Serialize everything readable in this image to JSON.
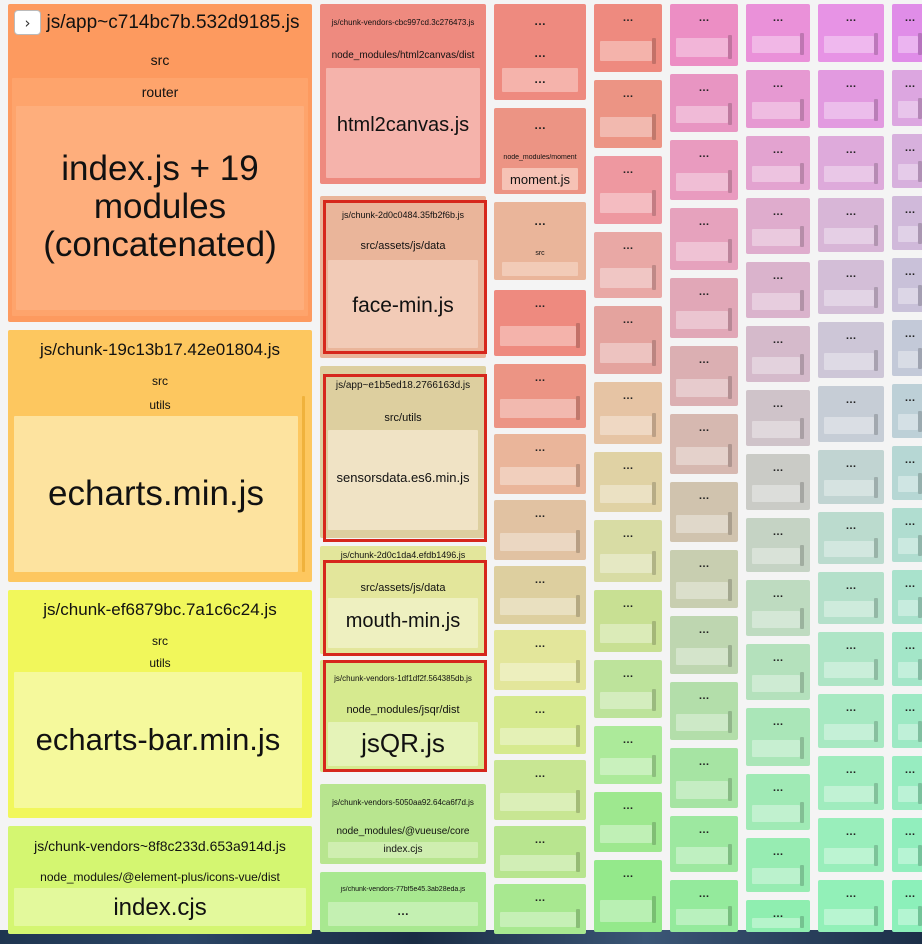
{
  "toggle": {
    "icon": "chevron-right-icon",
    "glyph": "›"
  },
  "placeholder": "…",
  "colors": {
    "col1": [
      "#fd9a5f",
      "#fdc75f",
      "#f1f75b",
      "#d4f671"
    ],
    "col2": [
      "#ee8a7f",
      "#ec9484",
      "#eab59a",
      "#ddcf9f",
      "#e3e69b",
      "#d6ea8f",
      "#b8e58f",
      "#a8e890",
      "#98e887"
    ],
    "highlight": "#d6271c"
  },
  "bundles": [
    {
      "name": "js/app~c714bc7b.532d9185.js",
      "path1": "src",
      "path2": "router",
      "module": "index.js + 19 modules (concatenated)"
    },
    {
      "name": "js/chunk-19c13b17.42e01804.js",
      "path1": "src",
      "path2": "utils",
      "module": "echarts.min.js"
    },
    {
      "name": "js/chunk-ef6879bc.7a1c6c24.js",
      "path1": "src",
      "path2": "utils",
      "module": "echarts-bar.min.js"
    },
    {
      "name": "js/chunk-vendors~8f8c233d.653a914d.js",
      "path1": "node_modules/@element-plus/icons-vue/dist",
      "module": "index.cjs"
    },
    {
      "name": "js/chunk-vendors-cbc997cd.3c276473.js",
      "path1": "node_modules/html2canvas/dist",
      "module": "html2canvas.js"
    },
    {
      "name": "node_modules/moment",
      "module": "moment.js"
    },
    {
      "name": "js/chunk-2d0c0484.35fb2f6b.js",
      "path1": "src/assets/js/data",
      "module": "face-min.js"
    },
    {
      "name": "js/app~e1b5ed18.2766163d.js",
      "path1": "src/utils",
      "module": "sensorsdata.es6.min.js"
    },
    {
      "name": "js/chunk-2d0c1da4.efdb1496.js",
      "path1": "src/assets/js/data",
      "module": "mouth-min.js"
    },
    {
      "name": "js/chunk-vendors-1df1df2f.564385db.js",
      "path1": "node_modules/jsqr/dist",
      "module": "jsQR.js"
    },
    {
      "name": "js/chunk-vendors-5050aa92.64ca6f7d.js",
      "path1": "node_modules/@vueuse/core",
      "module": "index.cjs"
    },
    {
      "name": "js/chunk-vendors-77bf5e45.3ab28eda.js"
    },
    {
      "path1": "src"
    }
  ]
}
